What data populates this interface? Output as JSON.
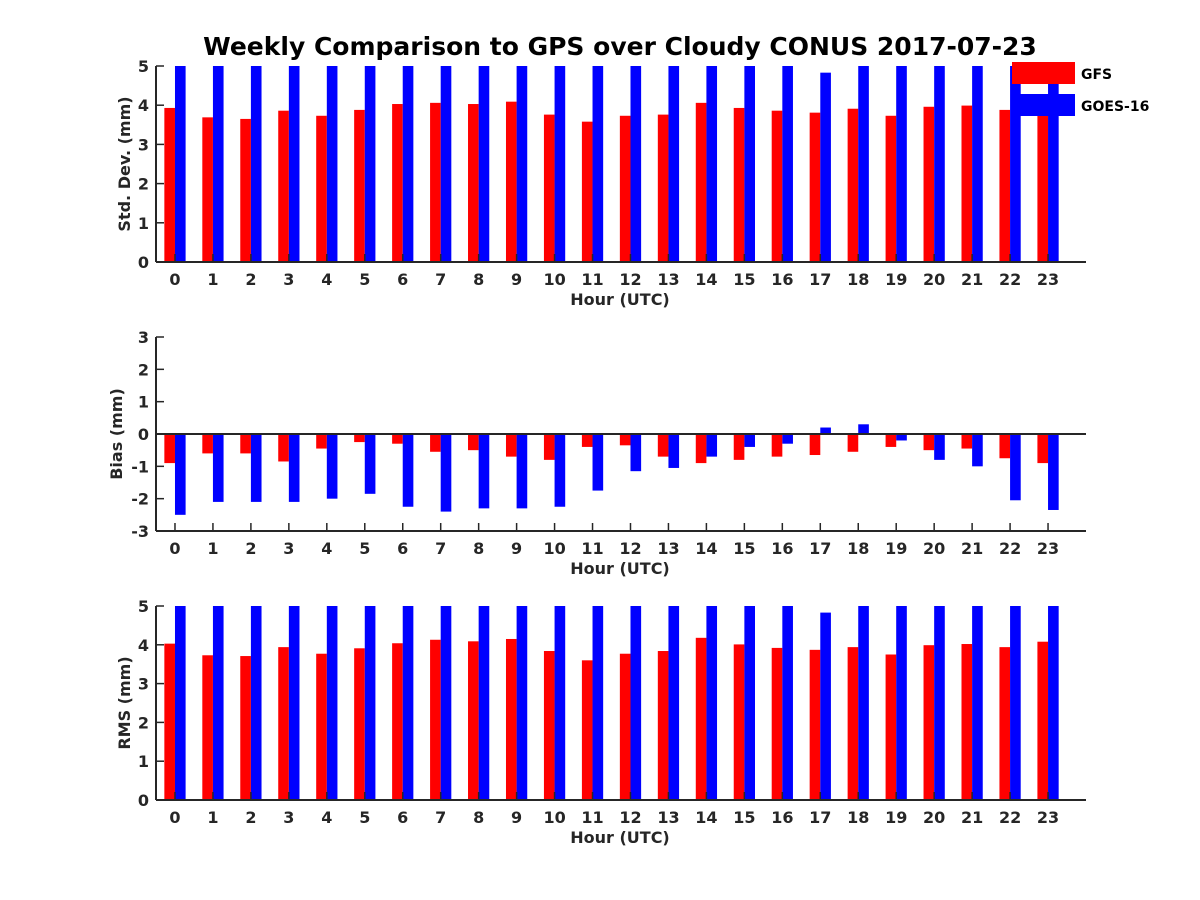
{
  "figure": {
    "title": "Weekly Comparison to GPS over Cloudy CONUS 2017-07-23"
  },
  "legend": {
    "placement": "top-right",
    "entries": [
      {
        "label": "GFS",
        "color": "#ff0000"
      },
      {
        "label": "GOES-16",
        "color": "#0000ff"
      }
    ]
  },
  "chart_data": [
    {
      "type": "bar",
      "xlabel": "Hour (UTC)",
      "ylabel": "Std. Dev. (mm)",
      "ylim": [
        0,
        5
      ],
      "yticks": [
        0,
        1,
        2,
        3,
        4,
        5
      ],
      "categories": [
        "0",
        "1",
        "2",
        "3",
        "4",
        "5",
        "6",
        "7",
        "8",
        "9",
        "10",
        "11",
        "12",
        "13",
        "14",
        "15",
        "16",
        "17",
        "18",
        "19",
        "20",
        "21",
        "22",
        "23"
      ],
      "series": [
        {
          "name": "GFS",
          "color": "#ff0000",
          "values": [
            3.93,
            3.69,
            3.65,
            3.86,
            3.73,
            3.88,
            4.03,
            4.06,
            4.03,
            4.09,
            3.76,
            3.58,
            3.73,
            3.76,
            4.06,
            3.93,
            3.86,
            3.81,
            3.91,
            3.73,
            3.96,
            3.99,
            3.88,
            3.99
          ]
        },
        {
          "name": "GOES-16",
          "color": "#0000ff",
          "values": [
            5.0,
            5.0,
            5.0,
            5.0,
            5.0,
            5.0,
            5.0,
            5.0,
            5.0,
            5.0,
            5.0,
            5.0,
            5.0,
            5.0,
            5.0,
            5.0,
            5.0,
            4.83,
            5.0,
            5.0,
            5.0,
            5.0,
            5.0,
            5.0
          ]
        }
      ]
    },
    {
      "type": "bar",
      "xlabel": "Hour (UTC)",
      "ylabel": "Bias (mm)",
      "ylim": [
        -3,
        3
      ],
      "yticks": [
        -3,
        -2,
        -1,
        0,
        1,
        2,
        3
      ],
      "zero_line": true,
      "categories": [
        "0",
        "1",
        "2",
        "3",
        "4",
        "5",
        "6",
        "7",
        "8",
        "9",
        "10",
        "11",
        "12",
        "13",
        "14",
        "15",
        "16",
        "17",
        "18",
        "19",
        "20",
        "21",
        "22",
        "23"
      ],
      "series": [
        {
          "name": "GFS",
          "color": "#ff0000",
          "values": [
            -0.9,
            -0.6,
            -0.6,
            -0.85,
            -0.45,
            -0.25,
            -0.3,
            -0.55,
            -0.5,
            -0.7,
            -0.8,
            -0.4,
            -0.35,
            -0.7,
            -0.9,
            -0.8,
            -0.7,
            -0.65,
            -0.55,
            -0.4,
            -0.5,
            -0.45,
            -0.75,
            -0.9
          ]
        },
        {
          "name": "GOES-16",
          "color": "#0000ff",
          "values": [
            -2.5,
            -2.1,
            -2.1,
            -2.1,
            -2.0,
            -1.85,
            -2.25,
            -2.4,
            -2.3,
            -2.3,
            -2.25,
            -1.75,
            -1.15,
            -1.05,
            -0.7,
            -0.4,
            -0.3,
            0.2,
            0.3,
            -0.2,
            -0.8,
            -1.0,
            -2.05,
            -2.35
          ]
        }
      ]
    },
    {
      "type": "bar",
      "xlabel": "Hour (UTC)",
      "ylabel": "RMS (mm)",
      "ylim": [
        0,
        5
      ],
      "yticks": [
        0,
        1,
        2,
        3,
        4,
        5
      ],
      "categories": [
        "0",
        "1",
        "2",
        "3",
        "4",
        "5",
        "6",
        "7",
        "8",
        "9",
        "10",
        "11",
        "12",
        "13",
        "14",
        "15",
        "16",
        "17",
        "18",
        "19",
        "20",
        "21",
        "22",
        "23"
      ],
      "series": [
        {
          "name": "GFS",
          "color": "#ff0000",
          "values": [
            4.03,
            3.73,
            3.71,
            3.94,
            3.77,
            3.91,
            4.04,
            4.13,
            4.09,
            4.15,
            3.84,
            3.6,
            3.77,
            3.84,
            4.18,
            4.01,
            3.92,
            3.87,
            3.94,
            3.75,
            3.99,
            4.02,
            3.94,
            4.08
          ]
        },
        {
          "name": "GOES-16",
          "color": "#0000ff",
          "values": [
            5.0,
            5.0,
            5.0,
            5.0,
            5.0,
            5.0,
            5.0,
            5.0,
            5.0,
            5.0,
            5.0,
            5.0,
            5.0,
            5.0,
            5.0,
            5.0,
            5.0,
            4.83,
            5.0,
            5.0,
            5.0,
            5.0,
            5.0,
            5.0
          ]
        }
      ]
    }
  ]
}
